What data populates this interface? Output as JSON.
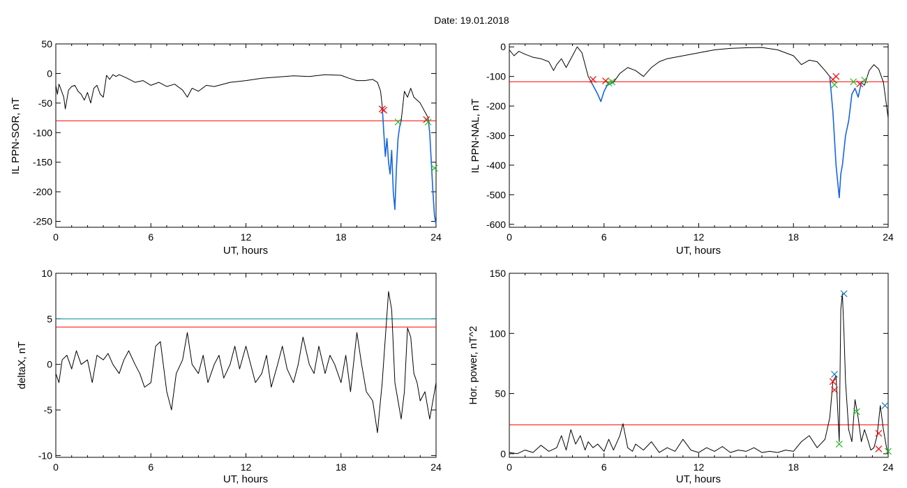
{
  "figure": {
    "title": "Date:  19.01.2018"
  },
  "colors": {
    "axes": "#000000",
    "trace": "#000000",
    "storm": "#1565e0",
    "threshold": "#ff0000",
    "alt_threshold": "#008b8b",
    "mark_red": "#ff0000",
    "mark_green": "#22bb22",
    "mark_blue": "#1f77b4"
  },
  "chart_data": [
    {
      "id": "p1",
      "type": "line",
      "ylabel": "IL PPN-SOR, nT",
      "xlabel": "UT, hours",
      "xlim": [
        0,
        24
      ],
      "ylim": [
        -260,
        50
      ],
      "xticks": [
        0,
        6,
        12,
        18,
        24
      ],
      "xtick_labels": [
        "0",
        "6",
        "12",
        "18",
        "24"
      ],
      "yticks": [
        50,
        0,
        -50,
        -100,
        -150,
        -200,
        -250
      ],
      "ytick_labels": [
        "50",
        "0",
        "-50",
        "-100",
        "-150",
        "-200",
        "-250"
      ],
      "series": [
        {
          "color_key": "trace",
          "x": [
            0,
            0.1,
            0.2,
            0.3,
            0.5,
            0.6,
            0.8,
            1.0,
            1.2,
            1.4,
            1.6,
            1.8,
            2.0,
            2.2,
            2.4,
            2.6,
            2.8,
            3.0,
            3.2,
            3.4,
            3.6,
            3.8,
            4.0,
            4.5,
            5,
            5.5,
            6,
            6.5,
            7,
            7.5,
            8,
            8.3,
            8.6,
            9,
            9.5,
            10,
            11,
            12,
            13,
            14,
            15,
            16,
            17,
            18,
            18.5,
            19,
            19.5,
            20,
            20.3,
            20.5,
            20.6
          ],
          "y": [
            -20,
            -35,
            -18,
            -25,
            -40,
            -60,
            -28,
            -22,
            -20,
            -30,
            -35,
            -45,
            -32,
            -50,
            -25,
            -20,
            -35,
            -40,
            -3,
            -10,
            -2,
            -5,
            -2,
            -8,
            -15,
            -12,
            -20,
            -15,
            -22,
            -18,
            -28,
            -40,
            -25,
            -30,
            -20,
            -22,
            -15,
            -12,
            -8,
            -6,
            -4,
            -5,
            -2,
            -3,
            -8,
            -12,
            -12,
            -10,
            -15,
            -30,
            -55
          ]
        },
        {
          "color_key": "storm",
          "x": [
            20.6,
            20.7,
            20.8,
            20.9,
            21.0,
            21.1,
            21.2,
            21.3,
            21.4,
            21.5,
            21.6,
            21.7,
            21.8
          ],
          "y": [
            -55,
            -100,
            -140,
            -110,
            -150,
            -170,
            -130,
            -200,
            -230,
            -160,
            -110,
            -90,
            -80
          ]
        },
        {
          "color_key": "trace",
          "x": [
            21.8,
            22.0,
            22.2,
            22.4,
            22.6,
            22.8,
            23.0,
            23.2,
            23.4,
            23.5
          ],
          "y": [
            -80,
            -30,
            -40,
            -25,
            -40,
            -45,
            -50,
            -60,
            -70,
            -75
          ]
        },
        {
          "color_key": "storm",
          "x": [
            23.5,
            23.6,
            23.7,
            23.8,
            23.9,
            24.0
          ],
          "y": [
            -75,
            -100,
            -150,
            -200,
            -240,
            -255
          ]
        }
      ],
      "hlines": [
        {
          "y": -80,
          "color_key": "threshold"
        }
      ],
      "markers": [
        {
          "x": 20.6,
          "y": -60,
          "color_key": "mark_red"
        },
        {
          "x": 20.7,
          "y": -62,
          "color_key": "mark_red"
        },
        {
          "x": 21.6,
          "y": -82,
          "color_key": "mark_green"
        },
        {
          "x": 23.4,
          "y": -78,
          "color_key": "mark_red"
        },
        {
          "x": 23.5,
          "y": -82,
          "color_key": "mark_green"
        },
        {
          "x": 23.9,
          "y": -160,
          "color_key": "mark_green"
        }
      ]
    },
    {
      "id": "p2",
      "type": "line",
      "ylabel": "IL PPN-NAL, nT",
      "xlabel": "UT, hours",
      "xlim": [
        0,
        24
      ],
      "ylim": [
        -610,
        10
      ],
      "xticks": [
        0,
        6,
        12,
        18,
        24
      ],
      "xtick_labels": [
        "0",
        "6",
        "12",
        "18",
        "24"
      ],
      "yticks": [
        0,
        -100,
        -200,
        -300,
        -400,
        -500,
        -600
      ],
      "ytick_labels": [
        "0",
        "-100",
        "-200",
        "-300",
        "-400",
        "-500",
        "-600"
      ],
      "series": [
        {
          "color_key": "trace",
          "x": [
            0,
            0.3,
            0.6,
            1.0,
            1.5,
            2.0,
            2.5,
            2.8,
            3.0,
            3.3,
            3.6,
            4.0,
            4.3,
            4.6,
            4.8,
            5.0,
            5.2
          ],
          "y": [
            -10,
            -30,
            -15,
            -25,
            -35,
            -40,
            -50,
            -80,
            -60,
            -40,
            -70,
            -30,
            0,
            -20,
            -60,
            -100,
            -120
          ]
        },
        {
          "color_key": "storm",
          "x": [
            5.2,
            5.4,
            5.6,
            5.8,
            6.0,
            6.2,
            6.4,
            6.6
          ],
          "y": [
            -120,
            -140,
            -160,
            -185,
            -150,
            -130,
            -125,
            -120
          ]
        },
        {
          "color_key": "trace",
          "x": [
            6.6,
            7,
            7.5,
            8,
            8.5,
            9,
            9.5,
            10,
            11,
            12,
            13,
            14,
            15,
            16,
            17,
            18,
            18.5,
            19,
            19.5,
            20,
            20.3
          ],
          "y": [
            -120,
            -90,
            -70,
            -80,
            -100,
            -70,
            -50,
            -40,
            -30,
            -20,
            -10,
            -5,
            -3,
            -2,
            -10,
            -30,
            -60,
            -45,
            -50,
            -80,
            -100
          ]
        },
        {
          "color_key": "storm",
          "x": [
            20.3,
            20.5,
            20.7,
            20.9,
            21.0,
            21.1,
            21.3,
            21.5,
            21.7,
            21.9,
            22.1,
            22.3,
            22.5
          ],
          "y": [
            -100,
            -220,
            -400,
            -510,
            -430,
            -400,
            -300,
            -250,
            -160,
            -140,
            -170,
            -120,
            -130
          ]
        },
        {
          "color_key": "trace",
          "x": [
            22.5,
            22.8,
            23.1,
            23.4,
            23.7,
            24.0
          ],
          "y": [
            -130,
            -80,
            -60,
            -75,
            -120,
            -240
          ]
        }
      ],
      "hlines": [
        {
          "y": -118,
          "color_key": "threshold"
        }
      ],
      "markers": [
        {
          "x": 5.3,
          "y": -110,
          "color_key": "mark_red"
        },
        {
          "x": 6.1,
          "y": -115,
          "color_key": "mark_red"
        },
        {
          "x": 6.3,
          "y": -122,
          "color_key": "mark_green"
        },
        {
          "x": 6.5,
          "y": -118,
          "color_key": "mark_green"
        },
        {
          "x": 20.5,
          "y": -110,
          "color_key": "mark_red"
        },
        {
          "x": 20.7,
          "y": -100,
          "color_key": "mark_red"
        },
        {
          "x": 20.6,
          "y": -128,
          "color_key": "mark_green"
        },
        {
          "x": 21.8,
          "y": -118,
          "color_key": "mark_green"
        },
        {
          "x": 22.2,
          "y": -125,
          "color_key": "mark_red"
        },
        {
          "x": 22.5,
          "y": -112,
          "color_key": "mark_green"
        }
      ]
    },
    {
      "id": "p3",
      "type": "line",
      "ylabel": "deltaX, nT",
      "xlabel": "UT, hours",
      "xlim": [
        0,
        24
      ],
      "ylim": [
        -10.2,
        10
      ],
      "xticks": [
        0,
        6,
        12,
        18,
        24
      ],
      "xtick_labels": [
        "0",
        "6",
        "12",
        "18",
        "24"
      ],
      "yticks": [
        10,
        5,
        0,
        -5,
        -10
      ],
      "ytick_labels": [
        "10",
        "5",
        "0",
        "-5",
        "-10"
      ],
      "series": [
        {
          "color_key": "trace",
          "x": [
            0,
            0.2,
            0.4,
            0.7,
            1.0,
            1.3,
            1.6,
            2.0,
            2.3,
            2.6,
            3.0,
            3.3,
            3.6,
            4.0,
            4.3,
            4.6,
            5.0,
            5.3,
            5.6,
            6.0,
            6.3,
            6.6,
            7.0,
            7.3,
            7.6,
            8.0,
            8.3,
            8.6,
            9.0,
            9.3,
            9.6,
            10.0,
            10.3,
            10.6,
            11.0,
            11.3,
            11.6,
            12.0,
            12.3,
            12.6,
            13.0,
            13.3,
            13.6,
            14.0,
            14.3,
            14.6,
            15.0,
            15.3,
            15.6,
            16.0,
            16.3,
            16.6,
            17.0,
            17.3,
            17.6,
            18.0,
            18.3,
            18.6,
            19.0,
            19.3,
            19.6,
            20.0,
            20.3,
            20.6,
            21.0,
            21.2,
            21.4,
            21.6,
            21.8,
            22.0,
            22.2,
            22.4,
            22.6,
            22.8,
            23.0,
            23.3,
            23.6,
            24.0
          ],
          "y": [
            -1,
            -2,
            0.5,
            1,
            -0.5,
            1.5,
            0,
            0.5,
            -2,
            1,
            0.5,
            1.2,
            0,
            -1,
            0.5,
            1.5,
            0,
            -1,
            -2.5,
            -2,
            2,
            2.5,
            -3,
            -5,
            -1,
            0.5,
            3.5,
            0,
            -1,
            1,
            -2,
            0,
            1,
            -1.5,
            0,
            2,
            -0.5,
            2,
            0,
            -2,
            -1,
            1,
            -2.5,
            0,
            2,
            -0.5,
            -2,
            0,
            3,
            0,
            -1,
            2,
            -1,
            1,
            0,
            -2,
            1,
            -3,
            3.5,
            0,
            -3,
            -4,
            -7.5,
            -2,
            8,
            6,
            -2,
            -4,
            -6,
            -3,
            4,
            3,
            -1,
            -2,
            -4,
            -3,
            -6,
            -2
          ]
        }
      ],
      "hlines": [
        {
          "y": 5,
          "color_key": "alt_threshold"
        },
        {
          "y": 4.1,
          "color_key": "threshold"
        }
      ],
      "markers": []
    },
    {
      "id": "p4",
      "type": "line",
      "ylabel": "Hor. power, nT^2",
      "xlabel": "UT, hours",
      "xlim": [
        0,
        24
      ],
      "ylim": [
        -3,
        150
      ],
      "xticks": [
        0,
        6,
        12,
        18,
        24
      ],
      "xtick_labels": [
        "0",
        "6",
        "12",
        "18",
        "24"
      ],
      "yticks": [
        150,
        100,
        50,
        0
      ],
      "ytick_labels": [
        "150",
        "100",
        "50",
        "0"
      ],
      "series": [
        {
          "color_key": "trace",
          "x": [
            0,
            0.5,
            1.0,
            1.5,
            2.0,
            2.5,
            3.0,
            3.3,
            3.6,
            3.9,
            4.2,
            4.5,
            4.8,
            5.0,
            5.3,
            5.6,
            6.0,
            6.3,
            6.6,
            7.0,
            7.2,
            7.5,
            7.8,
            8.0,
            8.5,
            9.0,
            9.5,
            10.0,
            10.5,
            11.0,
            11.5,
            12.0,
            12.5,
            13.0,
            13.5,
            14.0,
            14.5,
            15.0,
            15.5,
            16.0,
            16.5,
            17.0,
            17.5,
            18.0,
            18.5,
            19.0,
            19.5,
            20.0,
            20.3,
            20.5,
            20.7,
            20.9,
            21.0,
            21.1,
            21.2,
            21.3,
            21.5,
            21.7,
            21.9,
            22.1,
            22.3,
            22.5,
            22.7,
            22.9,
            23.1,
            23.3,
            23.5,
            23.7,
            23.9,
            24.0
          ],
          "y": [
            1,
            0,
            3,
            1,
            7,
            2,
            5,
            15,
            3,
            20,
            8,
            15,
            3,
            10,
            5,
            8,
            2,
            12,
            3,
            15,
            25,
            5,
            2,
            8,
            3,
            10,
            1,
            5,
            2,
            12,
            3,
            1,
            5,
            2,
            6,
            1,
            3,
            2,
            5,
            1,
            2,
            1,
            3,
            2,
            10,
            15,
            5,
            12,
            30,
            60,
            65,
            10,
            120,
            133,
            100,
            60,
            20,
            10,
            45,
            30,
            10,
            20,
            12,
            3,
            5,
            15,
            40,
            20,
            5,
            0
          ]
        }
      ],
      "hlines": [
        {
          "y": 24,
          "color_key": "threshold"
        }
      ],
      "markers": [
        {
          "x": 20.6,
          "y": 66,
          "color_key": "mark_blue"
        },
        {
          "x": 20.5,
          "y": 60,
          "color_key": "mark_red"
        },
        {
          "x": 20.6,
          "y": 53,
          "color_key": "mark_red"
        },
        {
          "x": 21.2,
          "y": 133,
          "color_key": "mark_blue"
        },
        {
          "x": 20.9,
          "y": 8,
          "color_key": "mark_green"
        },
        {
          "x": 22.0,
          "y": 35,
          "color_key": "mark_green"
        },
        {
          "x": 23.4,
          "y": 17,
          "color_key": "mark_red"
        },
        {
          "x": 23.4,
          "y": 4,
          "color_key": "mark_red"
        },
        {
          "x": 23.8,
          "y": 40,
          "color_key": "mark_blue"
        },
        {
          "x": 24.0,
          "y": 2,
          "color_key": "mark_green"
        }
      ]
    }
  ]
}
